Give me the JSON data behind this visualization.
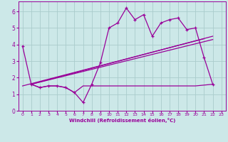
{
  "xlabel": "Windchill (Refroidissement éolien,°C)",
  "bg_color": "#cce8e8",
  "line_color": "#990099",
  "grid_color": "#aacccc",
  "xlim": [
    -0.5,
    23.5
  ],
  "ylim": [
    0,
    6.6
  ],
  "xticks": [
    0,
    1,
    2,
    3,
    4,
    5,
    6,
    7,
    8,
    9,
    10,
    11,
    12,
    13,
    14,
    15,
    16,
    17,
    18,
    19,
    20,
    21,
    22,
    23
  ],
  "yticks": [
    0,
    1,
    2,
    3,
    4,
    5,
    6
  ],
  "line1_x": [
    0,
    1,
    2,
    3,
    4,
    5,
    6,
    7,
    8,
    9,
    10,
    11,
    12,
    13,
    14,
    15,
    16,
    17,
    18,
    19,
    20,
    21,
    22
  ],
  "line1_y": [
    3.9,
    1.6,
    1.4,
    1.5,
    1.5,
    1.4,
    1.1,
    0.5,
    1.6,
    2.9,
    5.0,
    5.3,
    6.2,
    5.5,
    5.8,
    4.5,
    5.3,
    5.5,
    5.6,
    4.9,
    5.0,
    3.2,
    1.6
  ],
  "line2_x": [
    1,
    2,
    3,
    4,
    5,
    6,
    7,
    8,
    9,
    10,
    11,
    12,
    13,
    14,
    15,
    16,
    17,
    18,
    19,
    20,
    22
  ],
  "line2_y": [
    1.6,
    1.4,
    1.5,
    1.5,
    1.4,
    1.1,
    1.5,
    1.5,
    1.5,
    1.5,
    1.5,
    1.5,
    1.5,
    1.5,
    1.5,
    1.5,
    1.5,
    1.5,
    1.5,
    1.5,
    1.6
  ],
  "line3_x": [
    1,
    22
  ],
  "line3_y": [
    1.6,
    4.3
  ],
  "line4_x": [
    1,
    22
  ],
  "line4_y": [
    1.6,
    4.5
  ],
  "line5_x": [
    0,
    21
  ],
  "line5_y": [
    1.5,
    4.35
  ]
}
